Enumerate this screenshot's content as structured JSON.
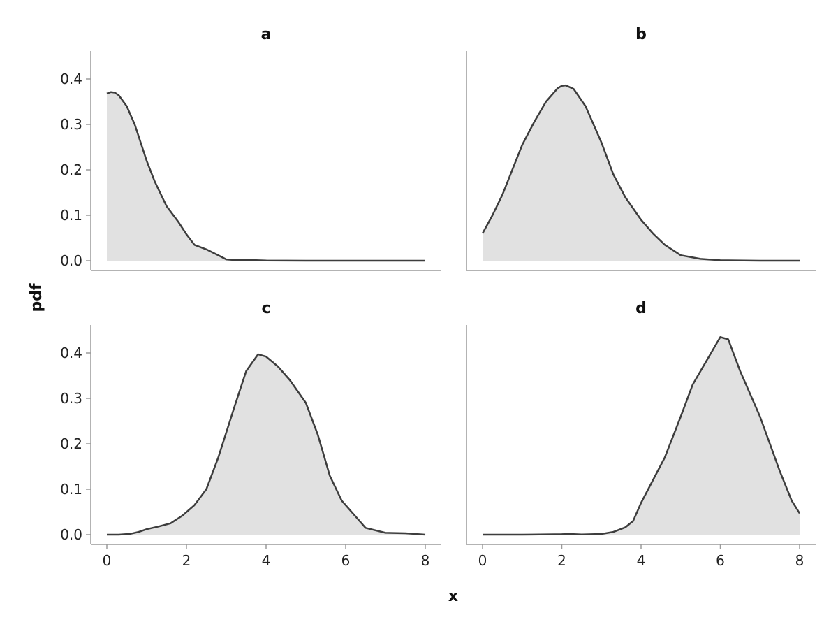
{
  "chart_data": {
    "type": "area",
    "xlabel": "x",
    "ylabel": "pdf",
    "xlim": [
      0,
      8
    ],
    "ylim": [
      0,
      0.4
    ],
    "x_ticks": [
      0,
      2,
      4,
      6,
      8
    ],
    "y_ticks": [
      0.0,
      0.1,
      0.2,
      0.3,
      0.4
    ],
    "y_tick_labels": [
      "0.0",
      "0.1",
      "0.2",
      "0.3",
      "0.4"
    ],
    "grid": false,
    "shared_axes": true,
    "colors": {
      "fill": "#e1e1e1",
      "line": "#3d3d3d",
      "spine": "#9a9a9a"
    },
    "panels": [
      {
        "title": "a",
        "x": [
          0,
          0.1,
          0.2,
          0.3,
          0.5,
          0.7,
          1.0,
          1.2,
          1.5,
          1.8,
          2.0,
          2.2,
          2.5,
          2.8,
          3.0,
          3.2,
          3.5,
          4.0,
          5.0,
          6.0,
          7.0,
          8.0
        ],
        "y": [
          0.368,
          0.371,
          0.37,
          0.364,
          0.34,
          0.3,
          0.22,
          0.175,
          0.12,
          0.085,
          0.058,
          0.035,
          0.025,
          0.012,
          0.003,
          0.0015,
          0.002,
          0.0005,
          0.0,
          0.0,
          0.0,
          0.0
        ]
      },
      {
        "title": "b",
        "x": [
          0,
          0.25,
          0.5,
          0.75,
          1.0,
          1.3,
          1.6,
          1.9,
          2.0,
          2.1,
          2.3,
          2.6,
          3.0,
          3.3,
          3.6,
          4.0,
          4.3,
          4.6,
          5.0,
          5.5,
          6.0,
          7.0,
          8.0
        ],
        "y": [
          0.06,
          0.1,
          0.145,
          0.2,
          0.255,
          0.305,
          0.35,
          0.38,
          0.385,
          0.386,
          0.378,
          0.34,
          0.26,
          0.19,
          0.14,
          0.09,
          0.06,
          0.035,
          0.012,
          0.004,
          0.001,
          0.0,
          0.0
        ]
      },
      {
        "title": "c",
        "x": [
          0,
          0.3,
          0.6,
          0.8,
          1.0,
          1.3,
          1.6,
          1.9,
          2.2,
          2.5,
          2.8,
          3.2,
          3.5,
          3.8,
          4.0,
          4.3,
          4.6,
          5.0,
          5.3,
          5.6,
          5.9,
          6.2,
          6.5,
          7.0,
          7.5,
          8.0
        ],
        "y": [
          0.0,
          0.0,
          0.002,
          0.006,
          0.012,
          0.018,
          0.025,
          0.042,
          0.065,
          0.1,
          0.17,
          0.28,
          0.36,
          0.397,
          0.392,
          0.37,
          0.34,
          0.29,
          0.22,
          0.13,
          0.075,
          0.045,
          0.015,
          0.004,
          0.003,
          0.0
        ]
      },
      {
        "title": "d",
        "x": [
          0,
          1.0,
          2.0,
          2.2,
          2.5,
          3.0,
          3.3,
          3.6,
          3.8,
          4.0,
          4.3,
          4.6,
          5.0,
          5.3,
          5.5,
          5.8,
          6.0,
          6.2,
          6.5,
          7.0,
          7.5,
          7.8,
          8.0
        ],
        "y": [
          0.0,
          0.0,
          0.001,
          0.0015,
          0.0005,
          0.0015,
          0.006,
          0.016,
          0.03,
          0.07,
          0.12,
          0.17,
          0.26,
          0.33,
          0.36,
          0.405,
          0.435,
          0.43,
          0.36,
          0.26,
          0.14,
          0.075,
          0.047
        ]
      }
    ]
  }
}
